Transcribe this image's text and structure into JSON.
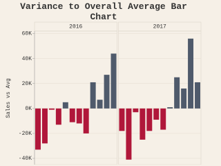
{
  "chart_data": {
    "type": "bar",
    "title": "Variance to Overall Average Bar Chart",
    "y_label": "Sales vs Avg",
    "positive_color": "#4f5a6b",
    "negative_color": "#b0173a",
    "ylim": [
      -45000,
      62000
    ],
    "yticks": [
      {
        "value": -40000,
        "label": "-40K"
      },
      {
        "value": -20000,
        "label": "-20K"
      },
      {
        "value": 0,
        "label": "0K"
      },
      {
        "value": 20000,
        "label": "20K"
      },
      {
        "value": 40000,
        "label": "40K"
      },
      {
        "value": 60000,
        "label": "60K"
      }
    ],
    "grid": true,
    "panels": [
      {
        "name": "2016",
        "categories": [
          null,
          null,
          null,
          null,
          null,
          null,
          null,
          null,
          null,
          null,
          null,
          null
        ],
        "values": [
          -33000,
          -28000,
          -1000,
          -13000,
          5000,
          -11000,
          -12000,
          -20000,
          21000,
          7000,
          27000,
          44000
        ]
      },
      {
        "name": "2017",
        "categories": [
          null,
          null,
          null,
          null,
          null,
          null,
          null,
          null,
          null,
          null,
          null,
          null
        ],
        "values": [
          -18000,
          -41000,
          -3000,
          -25000,
          -18000,
          -9000,
          -17000,
          1000,
          25000,
          16000,
          56000,
          21000
        ]
      }
    ]
  }
}
